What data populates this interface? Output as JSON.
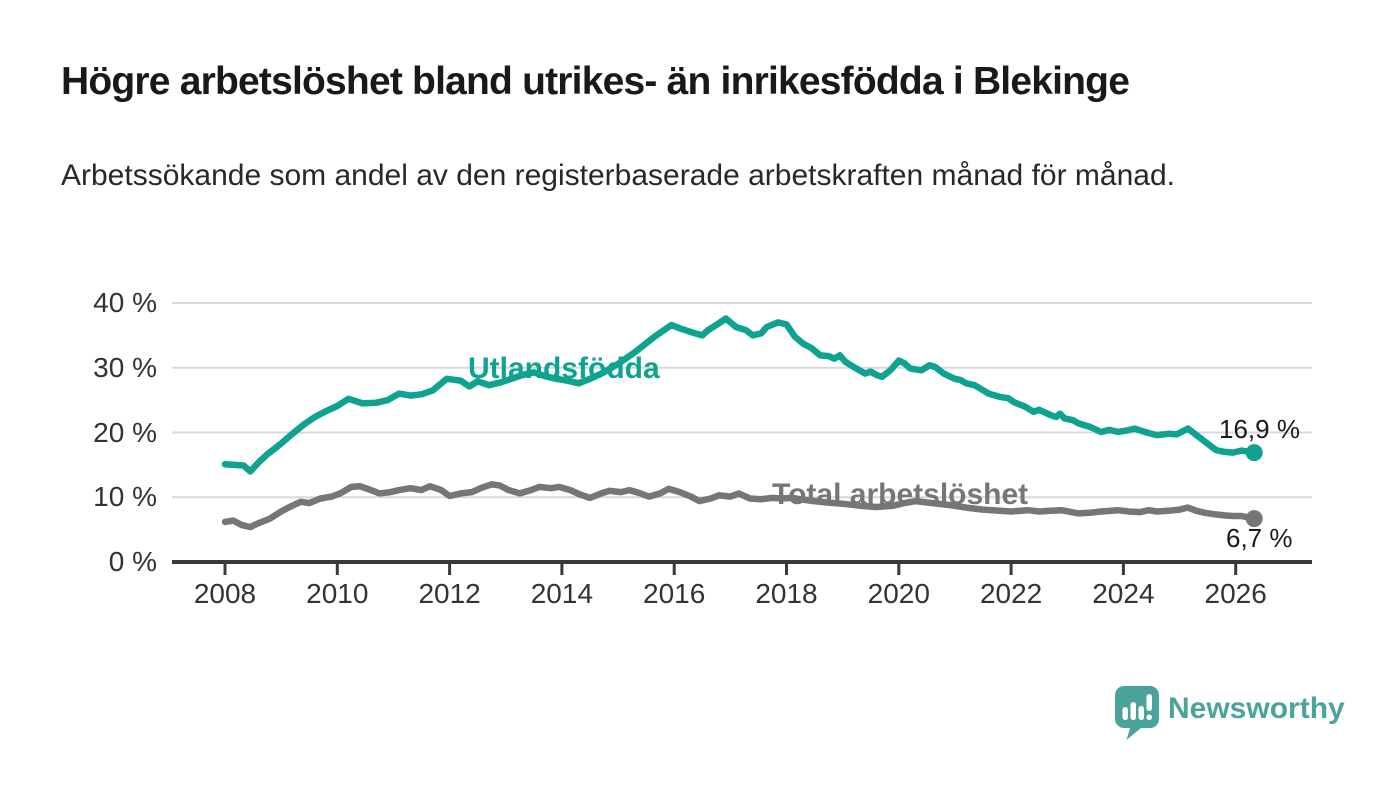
{
  "header": {
    "title": "Högre arbetslöshet bland utrikes- än inrikesfödda i Blekinge",
    "subtitle": "Arbetssökande som andel av den registerbaserade arbetskraften månad för månad."
  },
  "footer": {
    "brand": "Newsworthy"
  },
  "colors": {
    "teal": "#0da390",
    "gray": "#767676",
    "logo_teal": "#4aa49b",
    "axis": "#3a3a3a",
    "grid": "#d9d9d9",
    "title_text": "#191919"
  },
  "chart_data": {
    "type": "line",
    "title": "Högre arbetslöshet bland utrikes- än inrikesfödda i Blekinge",
    "subtitle": "Arbetssökande som andel av den registerbaserade arbetskraften månad för månad.",
    "xlabel": "",
    "ylabel": "",
    "x_ticks": [
      2008,
      2010,
      2012,
      2014,
      2016,
      2018,
      2020,
      2022,
      2024,
      2026
    ],
    "y_ticks": [
      0,
      10,
      20,
      30,
      40
    ],
    "y_tick_suffix": " %",
    "xlim": [
      2007.1,
      2027.3
    ],
    "ylim": [
      0,
      40
    ],
    "grid": true,
    "legend": "inline-labels",
    "series": [
      {
        "name": "Utlandsfödda",
        "color": "#0da390",
        "end_label": "16,9 %",
        "end_value": 16.9,
        "points": [
          [
            2008.0,
            15.1
          ],
          [
            2008.17,
            15.0
          ],
          [
            2008.33,
            14.9
          ],
          [
            2008.45,
            14.0
          ],
          [
            2008.6,
            15.4
          ],
          [
            2008.75,
            16.6
          ],
          [
            2008.9,
            17.6
          ],
          [
            2009.0,
            18.3
          ],
          [
            2009.2,
            19.8
          ],
          [
            2009.4,
            21.2
          ],
          [
            2009.6,
            22.4
          ],
          [
            2009.8,
            23.3
          ],
          [
            2010.0,
            24.1
          ],
          [
            2010.2,
            25.2
          ],
          [
            2010.45,
            24.5
          ],
          [
            2010.7,
            24.6
          ],
          [
            2010.9,
            25.0
          ],
          [
            2011.1,
            26.0
          ],
          [
            2011.3,
            25.7
          ],
          [
            2011.5,
            25.9
          ],
          [
            2011.7,
            26.5
          ],
          [
            2011.95,
            28.3
          ],
          [
            2012.2,
            28.0
          ],
          [
            2012.35,
            27.1
          ],
          [
            2012.5,
            27.9
          ],
          [
            2012.7,
            27.3
          ],
          [
            2012.9,
            27.7
          ],
          [
            2013.1,
            28.3
          ],
          [
            2013.3,
            28.9
          ],
          [
            2013.5,
            29.3
          ],
          [
            2013.7,
            28.7
          ],
          [
            2013.9,
            28.3
          ],
          [
            2014.1,
            28.0
          ],
          [
            2014.3,
            27.6
          ],
          [
            2014.5,
            28.3
          ],
          [
            2014.75,
            29.3
          ],
          [
            2015.0,
            30.6
          ],
          [
            2015.3,
            32.4
          ],
          [
            2015.65,
            34.8
          ],
          [
            2015.95,
            36.6
          ],
          [
            2016.1,
            36.1
          ],
          [
            2016.3,
            35.5
          ],
          [
            2016.5,
            35.0
          ],
          [
            2016.6,
            35.8
          ],
          [
            2016.75,
            36.6
          ],
          [
            2016.92,
            37.6
          ],
          [
            2017.1,
            36.3
          ],
          [
            2017.28,
            35.8
          ],
          [
            2017.4,
            35.0
          ],
          [
            2017.55,
            35.3
          ],
          [
            2017.65,
            36.3
          ],
          [
            2017.85,
            37.0
          ],
          [
            2018.0,
            36.7
          ],
          [
            2018.15,
            34.8
          ],
          [
            2018.3,
            33.7
          ],
          [
            2018.45,
            33.0
          ],
          [
            2018.6,
            31.9
          ],
          [
            2018.75,
            31.8
          ],
          [
            2018.85,
            31.4
          ],
          [
            2018.95,
            31.9
          ],
          [
            2019.05,
            30.9
          ],
          [
            2019.2,
            30.1
          ],
          [
            2019.4,
            29.1
          ],
          [
            2019.5,
            29.4
          ],
          [
            2019.6,
            28.9
          ],
          [
            2019.7,
            28.6
          ],
          [
            2019.85,
            29.6
          ],
          [
            2020.0,
            31.1
          ],
          [
            2020.1,
            30.7
          ],
          [
            2020.2,
            29.9
          ],
          [
            2020.4,
            29.6
          ],
          [
            2020.55,
            30.4
          ],
          [
            2020.65,
            30.1
          ],
          [
            2020.8,
            29.1
          ],
          [
            2021.0,
            28.3
          ],
          [
            2021.1,
            28.1
          ],
          [
            2021.2,
            27.6
          ],
          [
            2021.35,
            27.3
          ],
          [
            2021.45,
            26.8
          ],
          [
            2021.6,
            26.0
          ],
          [
            2021.8,
            25.5
          ],
          [
            2021.95,
            25.3
          ],
          [
            2022.05,
            24.7
          ],
          [
            2022.25,
            24.0
          ],
          [
            2022.4,
            23.2
          ],
          [
            2022.5,
            23.5
          ],
          [
            2022.7,
            22.7
          ],
          [
            2022.8,
            22.4
          ],
          [
            2022.87,
            22.9
          ],
          [
            2022.95,
            22.2
          ],
          [
            2023.1,
            21.9
          ],
          [
            2023.2,
            21.4
          ],
          [
            2023.4,
            20.9
          ],
          [
            2023.6,
            20.1
          ],
          [
            2023.75,
            20.4
          ],
          [
            2023.9,
            20.1
          ],
          [
            2024.05,
            20.3
          ],
          [
            2024.2,
            20.6
          ],
          [
            2024.45,
            19.9
          ],
          [
            2024.6,
            19.6
          ],
          [
            2024.8,
            19.8
          ],
          [
            2024.95,
            19.7
          ],
          [
            2025.15,
            20.6
          ],
          [
            2025.3,
            19.6
          ],
          [
            2025.45,
            18.6
          ],
          [
            2025.65,
            17.3
          ],
          [
            2025.8,
            17.0
          ],
          [
            2025.95,
            16.9
          ],
          [
            2026.1,
            17.2
          ],
          [
            2026.33,
            16.9
          ]
        ]
      },
      {
        "name": "Total arbetslöshet",
        "color": "#767676",
        "end_label": "6,7 %",
        "end_value": 6.7,
        "points": [
          [
            2008.0,
            6.2
          ],
          [
            2008.15,
            6.4
          ],
          [
            2008.3,
            5.7
          ],
          [
            2008.45,
            5.4
          ],
          [
            2008.6,
            6.0
          ],
          [
            2008.8,
            6.7
          ],
          [
            2009.0,
            7.8
          ],
          [
            2009.15,
            8.5
          ],
          [
            2009.35,
            9.3
          ],
          [
            2009.5,
            9.1
          ],
          [
            2009.7,
            9.8
          ],
          [
            2009.9,
            10.1
          ],
          [
            2010.05,
            10.6
          ],
          [
            2010.25,
            11.6
          ],
          [
            2010.4,
            11.7
          ],
          [
            2010.6,
            11.1
          ],
          [
            2010.75,
            10.6
          ],
          [
            2010.95,
            10.8
          ],
          [
            2011.1,
            11.1
          ],
          [
            2011.3,
            11.4
          ],
          [
            2011.5,
            11.1
          ],
          [
            2011.65,
            11.7
          ],
          [
            2011.85,
            11.1
          ],
          [
            2012.0,
            10.2
          ],
          [
            2012.2,
            10.6
          ],
          [
            2012.4,
            10.8
          ],
          [
            2012.55,
            11.4
          ],
          [
            2012.75,
            12.0
          ],
          [
            2012.9,
            11.8
          ],
          [
            2013.05,
            11.1
          ],
          [
            2013.25,
            10.6
          ],
          [
            2013.45,
            11.1
          ],
          [
            2013.6,
            11.6
          ],
          [
            2013.8,
            11.4
          ],
          [
            2013.95,
            11.6
          ],
          [
            2014.15,
            11.1
          ],
          [
            2014.3,
            10.5
          ],
          [
            2014.5,
            9.9
          ],
          [
            2014.7,
            10.6
          ],
          [
            2014.85,
            11.0
          ],
          [
            2015.05,
            10.8
          ],
          [
            2015.2,
            11.1
          ],
          [
            2015.4,
            10.6
          ],
          [
            2015.55,
            10.1
          ],
          [
            2015.75,
            10.6
          ],
          [
            2015.9,
            11.3
          ],
          [
            2016.1,
            10.8
          ],
          [
            2016.3,
            10.1
          ],
          [
            2016.45,
            9.4
          ],
          [
            2016.65,
            9.8
          ],
          [
            2016.8,
            10.3
          ],
          [
            2017.0,
            10.1
          ],
          [
            2017.15,
            10.6
          ],
          [
            2017.35,
            9.8
          ],
          [
            2017.55,
            9.7
          ],
          [
            2017.75,
            9.9
          ],
          [
            2017.9,
            9.8
          ],
          [
            2018.1,
            9.9
          ],
          [
            2018.4,
            9.5
          ],
          [
            2018.7,
            9.2
          ],
          [
            2019.0,
            9.0
          ],
          [
            2019.3,
            8.7
          ],
          [
            2019.6,
            8.5
          ],
          [
            2019.9,
            8.7
          ],
          [
            2020.1,
            9.1
          ],
          [
            2020.3,
            9.4
          ],
          [
            2020.6,
            9.1
          ],
          [
            2020.9,
            8.8
          ],
          [
            2021.2,
            8.4
          ],
          [
            2021.5,
            8.1
          ],
          [
            2021.8,
            7.9
          ],
          [
            2022.0,
            7.8
          ],
          [
            2022.3,
            8.0
          ],
          [
            2022.5,
            7.8
          ],
          [
            2022.7,
            7.9
          ],
          [
            2022.9,
            8.0
          ],
          [
            2023.2,
            7.5
          ],
          [
            2023.4,
            7.6
          ],
          [
            2023.6,
            7.8
          ],
          [
            2023.9,
            8.0
          ],
          [
            2024.1,
            7.8
          ],
          [
            2024.3,
            7.7
          ],
          [
            2024.45,
            8.0
          ],
          [
            2024.6,
            7.8
          ],
          [
            2024.8,
            7.9
          ],
          [
            2025.0,
            8.1
          ],
          [
            2025.15,
            8.4
          ],
          [
            2025.3,
            7.9
          ],
          [
            2025.45,
            7.6
          ],
          [
            2025.6,
            7.4
          ],
          [
            2025.8,
            7.2
          ],
          [
            2025.95,
            7.1
          ],
          [
            2026.1,
            7.1
          ],
          [
            2026.33,
            6.7
          ]
        ]
      }
    ]
  }
}
